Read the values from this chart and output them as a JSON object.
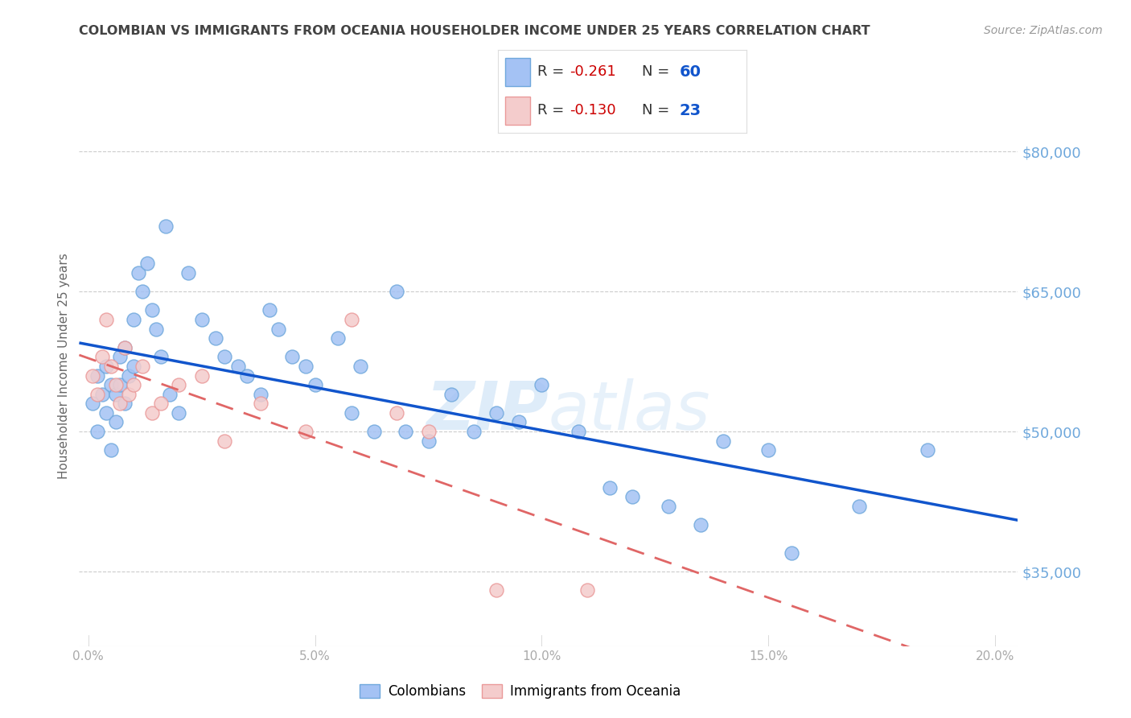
{
  "title": "COLOMBIAN VS IMMIGRANTS FROM OCEANIA HOUSEHOLDER INCOME UNDER 25 YEARS CORRELATION CHART",
  "source": "Source: ZipAtlas.com",
  "ylabel": "Householder Income Under 25 years",
  "xlabel_ticks": [
    "0.0%",
    "5.0%",
    "10.0%",
    "15.0%",
    "20.0%"
  ],
  "xlabel_vals": [
    0.0,
    0.05,
    0.1,
    0.15,
    0.2
  ],
  "ylabel_ticks": [
    "$35,000",
    "$50,000",
    "$65,000",
    "$80,000"
  ],
  "ylabel_vals": [
    35000,
    50000,
    65000,
    80000
  ],
  "xlim": [
    -0.002,
    0.205
  ],
  "ylim": [
    27000,
    87000
  ],
  "colombian_color": "#a4c2f4",
  "colombian_edge_color": "#6fa8dc",
  "oceania_color": "#f4cccc",
  "oceania_edge_color": "#ea9999",
  "colombian_line_color": "#1155cc",
  "oceania_line_color": "#e06666",
  "background_color": "#ffffff",
  "grid_color": "#cccccc",
  "watermark_color": "#d0e4f7",
  "legend_r_color": "#cc0000",
  "legend_n_color": "#1155cc",
  "title_color": "#434343",
  "source_color": "#999999",
  "ylabel_color": "#666666",
  "tick_color": "#aaaaaa",
  "right_tick_color": "#6fa8dc",
  "colombians_x": [
    0.001,
    0.002,
    0.002,
    0.003,
    0.004,
    0.004,
    0.005,
    0.005,
    0.006,
    0.006,
    0.007,
    0.007,
    0.008,
    0.008,
    0.009,
    0.01,
    0.01,
    0.011,
    0.012,
    0.013,
    0.014,
    0.015,
    0.016,
    0.017,
    0.018,
    0.02,
    0.022,
    0.025,
    0.028,
    0.03,
    0.033,
    0.035,
    0.038,
    0.04,
    0.042,
    0.045,
    0.048,
    0.05,
    0.055,
    0.058,
    0.06,
    0.063,
    0.068,
    0.07,
    0.075,
    0.08,
    0.085,
    0.09,
    0.095,
    0.1,
    0.108,
    0.115,
    0.12,
    0.128,
    0.135,
    0.14,
    0.15,
    0.155,
    0.17,
    0.185
  ],
  "colombians_y": [
    53000,
    50000,
    56000,
    54000,
    52000,
    57000,
    55000,
    48000,
    54000,
    51000,
    58000,
    55000,
    53000,
    59000,
    56000,
    62000,
    57000,
    67000,
    65000,
    68000,
    63000,
    61000,
    58000,
    72000,
    54000,
    52000,
    67000,
    62000,
    60000,
    58000,
    57000,
    56000,
    54000,
    63000,
    61000,
    58000,
    57000,
    55000,
    60000,
    52000,
    57000,
    50000,
    65000,
    50000,
    49000,
    54000,
    50000,
    52000,
    51000,
    55000,
    50000,
    44000,
    43000,
    42000,
    40000,
    49000,
    48000,
    37000,
    42000,
    48000
  ],
  "oceania_x": [
    0.001,
    0.002,
    0.003,
    0.004,
    0.005,
    0.006,
    0.007,
    0.008,
    0.009,
    0.01,
    0.012,
    0.014,
    0.016,
    0.02,
    0.025,
    0.03,
    0.038,
    0.048,
    0.058,
    0.068,
    0.075,
    0.09,
    0.11
  ],
  "oceania_y": [
    56000,
    54000,
    58000,
    62000,
    57000,
    55000,
    53000,
    59000,
    54000,
    55000,
    57000,
    52000,
    53000,
    55000,
    56000,
    49000,
    53000,
    50000,
    62000,
    52000,
    50000,
    33000,
    33000
  ]
}
